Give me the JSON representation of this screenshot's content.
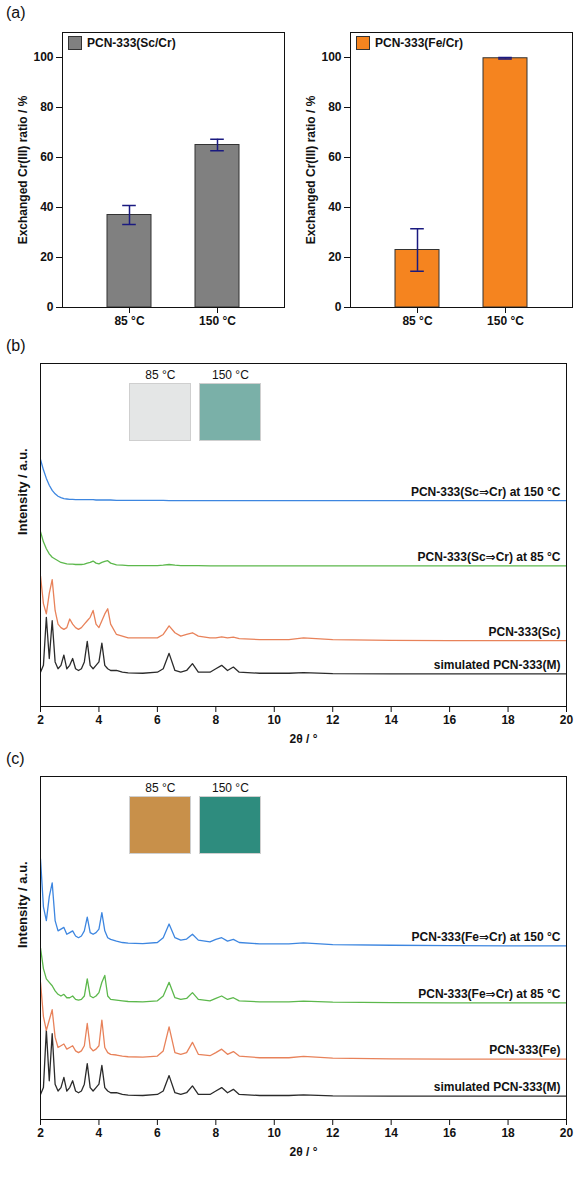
{
  "chart_data": [
    {
      "type": "bar",
      "panel": "(a)",
      "categories": [
        "85 °C",
        "150 °C"
      ],
      "series": [
        {
          "name": "PCN-333(Sc/Cr)",
          "color": "#808080",
          "values": [
            37,
            65
          ],
          "errors": [
            3.8,
            2.3
          ]
        }
      ],
      "y_label": "Exchanged Cr(III) ratio / %",
      "ylim": [
        0,
        110
      ],
      "yticks": [
        0,
        20,
        40,
        60,
        80,
        100
      ],
      "legend": "top-left"
    },
    {
      "type": "bar",
      "categories": [
        "85 °C",
        "150 °C"
      ],
      "series": [
        {
          "name": "PCN-333(Fe/Cr)",
          "color": "#f5841f",
          "values": [
            23,
            99.7
          ],
          "errors": [
            8.5,
            0.3
          ]
        }
      ],
      "y_label": "Exchanged Cr(III) ratio / %",
      "ylim": [
        0,
        110
      ],
      "yticks": [
        0,
        20,
        40,
        60,
        80,
        100
      ],
      "legend": "top-left"
    },
    {
      "type": "line",
      "panel": "(b)",
      "x_label": "2θ / °",
      "y_label": "Intensity / a.u.",
      "x": [
        2.0,
        2.1,
        2.2,
        2.3,
        2.4,
        2.5,
        2.6,
        2.7,
        2.8,
        2.9,
        3.0,
        3.1,
        3.2,
        3.3,
        3.4,
        3.5,
        3.6,
        3.7,
        3.8,
        3.9,
        4.0,
        4.1,
        4.2,
        4.3,
        4.4,
        4.6,
        4.8,
        5.0,
        5.5,
        6.0,
        6.2,
        6.4,
        6.6,
        6.8,
        7.0,
        7.2,
        7.4,
        7.8,
        8.0,
        8.2,
        8.4,
        8.6,
        8.8,
        9.5,
        10.5,
        11,
        12,
        14,
        16,
        18,
        20
      ],
      "xlim": [
        2,
        20
      ],
      "xticks": [
        2,
        4,
        6,
        8,
        10,
        12,
        14,
        16,
        18,
        20
      ],
      "ylim": [
        0,
        100
      ],
      "yticks": [],
      "tick_labels": "x",
      "series": [
        {
          "name": "simulated PCN-333(M)",
          "color": "#2b2b2b",
          "values": [
            10,
            12,
            26,
            14,
            25,
            13,
            11,
            12,
            15,
            11,
            12,
            14,
            11,
            10.5,
            11,
            13,
            19,
            12,
            11,
            12,
            13,
            18.5,
            12,
            11,
            10.5,
            10.5,
            10,
            9.8,
            9.7,
            10,
            11,
            15.5,
            10.5,
            10,
            10.5,
            12.5,
            10,
            10,
            11,
            12,
            10.5,
            11.5,
            10,
            9.7,
            9.7,
            9.9,
            9.6,
            9.5,
            9.5,
            9.5,
            9.5
          ]
        },
        {
          "name": "PCN-333(Sc)",
          "color": "#e8825a",
          "values": [
            38,
            30,
            27,
            33,
            37,
            28,
            24,
            23,
            22.5,
            23,
            25.5,
            24,
            23,
            22.5,
            23,
            24,
            25,
            26,
            28,
            24,
            23,
            25,
            27,
            28.5,
            24,
            21,
            20.5,
            20,
            20,
            20,
            21,
            23.5,
            21.5,
            20.5,
            21,
            21.5,
            20.5,
            20,
            20,
            20.3,
            20,
            20.2,
            19.8,
            19.5,
            19.5,
            20,
            19.5,
            19.3,
            19.2,
            19.2,
            19.2
          ]
        },
        {
          "name": "PCN-333(Sc⇒Cr) at 85 °C",
          "color": "#5cb84c",
          "values": [
            51,
            48,
            46,
            44.5,
            43.5,
            43,
            42.5,
            42,
            41.8,
            41.6,
            41.5,
            41.5,
            41.4,
            41.4,
            41.4,
            41.5,
            41.8,
            42,
            42.4,
            41.8,
            41.6,
            42,
            42.3,
            42.5,
            41.8,
            41.3,
            41.2,
            41.1,
            41.1,
            41.1,
            41.2,
            41.4,
            41.2,
            41.1,
            41.1,
            41.1,
            41.1,
            41,
            41,
            41,
            41,
            41,
            41,
            41,
            41,
            41,
            41,
            41,
            41,
            41,
            41
          ]
        },
        {
          "name": "PCN-333(Sc⇒Cr) at 150 °C",
          "color": "#3d86e0",
          "values": [
            72,
            69,
            66.5,
            64.5,
            63,
            62,
            61.3,
            60.9,
            60.6,
            60.5,
            60.4,
            60.4,
            60.3,
            60.3,
            60.3,
            60.3,
            60.3,
            60.3,
            60.3,
            60.2,
            60.2,
            60.2,
            60.2,
            60.2,
            60.2,
            60.1,
            60.1,
            60.1,
            60.1,
            60.1,
            60.1,
            60,
            60,
            60,
            60,
            60,
            60,
            60,
            60,
            60,
            60,
            60,
            60,
            60,
            60,
            60,
            60,
            60,
            60,
            60,
            60
          ]
        }
      ],
      "insets": [
        {
          "label": "85 °C",
          "color": "#e4e6e6"
        },
        {
          "label": "150 °C",
          "color": "#7ab0a8"
        }
      ]
    },
    {
      "type": "line",
      "panel": "(c)",
      "x_label": "2θ / °",
      "y_label": "Intensity / a.u.",
      "x": [
        2.0,
        2.1,
        2.2,
        2.3,
        2.4,
        2.5,
        2.6,
        2.7,
        2.8,
        2.9,
        3.0,
        3.1,
        3.2,
        3.3,
        3.4,
        3.5,
        3.6,
        3.7,
        3.8,
        3.9,
        4.0,
        4.1,
        4.2,
        4.3,
        4.4,
        4.6,
        4.8,
        5.0,
        5.5,
        6.0,
        6.2,
        6.4,
        6.6,
        6.8,
        7.0,
        7.2,
        7.4,
        7.8,
        8.0,
        8.2,
        8.4,
        8.6,
        8.8,
        9.5,
        10.5,
        11,
        12,
        14,
        16,
        18,
        20
      ],
      "xlim": [
        2,
        20
      ],
      "xticks": [
        2,
        4,
        6,
        8,
        10,
        12,
        14,
        16,
        18,
        20
      ],
      "ylim": [
        0,
        100
      ],
      "yticks": [],
      "tick_labels": "x",
      "series": [
        {
          "name": "simulated PCN-333(M)",
          "color": "#2b2b2b",
          "values": [
            7.3,
            9.3,
            26,
            11.3,
            25,
            10.3,
            8.3,
            9.3,
            12.3,
            8.3,
            9.3,
            11.3,
            8.3,
            7.8,
            8.3,
            10.3,
            16.3,
            9.3,
            8.3,
            9.3,
            10.3,
            15.8,
            9.3,
            8.3,
            7.8,
            7.8,
            7.3,
            7.1,
            7,
            7.3,
            8.3,
            12.8,
            7.8,
            7.3,
            7.8,
            9.8,
            7.3,
            7.3,
            8.3,
            9.3,
            7.8,
            8.8,
            7.3,
            7,
            7,
            7.2,
            6.9,
            6.8,
            6.8,
            6.8,
            6.8
          ]
        },
        {
          "name": "PCN-333(Fe)",
          "color": "#e8825a",
          "values": [
            40,
            30,
            26,
            29,
            32,
            24,
            21,
            21.5,
            22,
            20.5,
            21,
            21.5,
            20,
            19.5,
            20,
            21.5,
            28,
            21,
            20,
            20.5,
            21.5,
            29,
            21,
            19.5,
            19,
            18.8,
            18.5,
            18.3,
            18.2,
            18.5,
            20,
            27,
            19.5,
            19,
            19.5,
            22.5,
            19,
            18.6,
            19.5,
            20.5,
            19,
            19.8,
            18.5,
            18,
            18,
            18.4,
            17.9,
            17.7,
            17.6,
            17.6,
            17.6
          ]
        },
        {
          "name": "PCN-333(Fe⇒Cr) at 85 °C",
          "color": "#5cb84c",
          "values": [
            50,
            44,
            41,
            40,
            39,
            37.5,
            36.5,
            36,
            36.5,
            35.5,
            35.5,
            36,
            35,
            34.8,
            35,
            36,
            41,
            36,
            35.5,
            36,
            37,
            40,
            42,
            36,
            35,
            34.8,
            34.6,
            34.4,
            34.3,
            34.6,
            36,
            40,
            35.5,
            35,
            35.3,
            37,
            35,
            34.6,
            35.3,
            36,
            35,
            35.5,
            34.6,
            34.3,
            34.3,
            34.5,
            34.2,
            34.1,
            34,
            34,
            34
          ]
        },
        {
          "name": "PCN-333(Fe⇒Cr) at 150 °C",
          "color": "#3d86e0",
          "values": [
            76,
            62,
            58,
            65,
            69,
            58,
            55,
            55.5,
            56,
            54,
            54.5,
            55,
            53.5,
            53,
            53.5,
            55,
            59,
            54.5,
            54,
            54.5,
            55.5,
            60.3,
            55,
            53,
            52.5,
            52,
            51.6,
            51.4,
            51.3,
            51.6,
            53,
            57,
            53,
            52.3,
            52.6,
            54,
            52.3,
            51.8,
            52.5,
            53,
            52,
            52.5,
            51.6,
            51.2,
            51.2,
            51.5,
            51,
            50.8,
            50.7,
            50.6,
            50.6
          ]
        }
      ],
      "insets": [
        {
          "label": "85 °C",
          "color": "#c8904a"
        },
        {
          "label": "150 °C",
          "color": "#2e8c7e"
        }
      ]
    }
  ]
}
